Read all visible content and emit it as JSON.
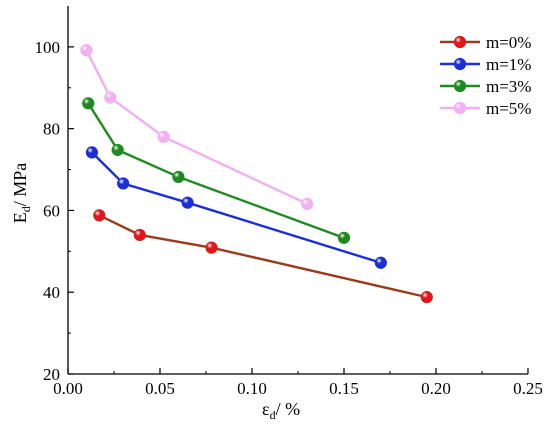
{
  "chart_data": {
    "type": "line",
    "title": "",
    "xlabel": {
      "main": "ε",
      "sub": "d",
      "rest": "/ %"
    },
    "ylabel": {
      "main": "E",
      "sub": "d",
      "rest": "/ MPa"
    },
    "xlim": [
      0.0,
      0.25
    ],
    "ylim": [
      20,
      110
    ],
    "xticks": [
      0.0,
      0.05,
      0.1,
      0.15,
      0.2,
      0.25
    ],
    "xtick_labels": [
      "0.00",
      "0.05",
      "0.10",
      "0.15",
      "0.20",
      "0.25"
    ],
    "yticks": [
      20,
      40,
      60,
      80,
      100
    ],
    "ytick_labels": [
      "20",
      "40",
      "60",
      "80",
      "100"
    ],
    "grid": false,
    "legend_position": "top-right",
    "series": [
      {
        "name": "m=0%",
        "color": "#e8141c",
        "line_color": "#9a3b1a",
        "x": [
          0.017,
          0.039,
          0.078,
          0.195
        ],
        "y": [
          58.8,
          54.0,
          50.9,
          38.8
        ]
      },
      {
        "name": "m=1%",
        "color": "#1a2fd6",
        "line_color": "#1a2fd6",
        "x": [
          0.013,
          0.03,
          0.065,
          0.17
        ],
        "y": [
          74.2,
          66.6,
          61.9,
          47.2
        ]
      },
      {
        "name": "m=3%",
        "color": "#1f8a1f",
        "line_color": "#1f8a1f",
        "x": [
          0.011,
          0.027,
          0.06,
          0.15
        ],
        "y": [
          86.2,
          74.8,
          68.2,
          53.3
        ]
      },
      {
        "name": "m=5%",
        "color": "#f2b0f2",
        "line_color": "#f2b0f2",
        "x": [
          0.01,
          0.023,
          0.052,
          0.13
        ],
        "y": [
          99.2,
          87.6,
          78.0,
          61.6
        ]
      }
    ]
  }
}
